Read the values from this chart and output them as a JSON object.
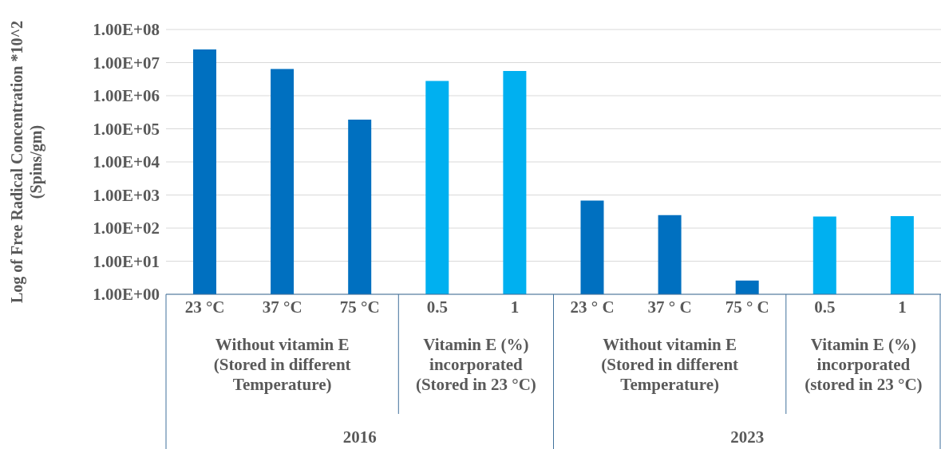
{
  "chart_data": {
    "type": "bar",
    "ylabel": "Log of Free Radical Concentration *10^2\n(Spins/gm)",
    "categories": [
      "23 °C",
      "37 °C",
      "75  °C",
      "0.5",
      "1",
      "23 ° C",
      "37  ° C",
      "75  ° C",
      "0.5",
      "1"
    ],
    "values": [
      25000000,
      6400000,
      190000,
      2800000,
      5600000,
      680,
      245,
      2.6,
      224,
      230
    ],
    "colors": [
      "#0070c0",
      "#0070c0",
      "#0070c0",
      "#00b0f0",
      "#00b0f0",
      "#0070c0",
      "#0070c0",
      "#0070c0",
      "#00b0f0",
      "#00b0f0"
    ],
    "log": true,
    "ylim": [
      1,
      100000000
    ],
    "yticks": [
      {
        "value": 1,
        "label": "1.00E+00"
      },
      {
        "value": 10,
        "label": "1.00E+01"
      },
      {
        "value": 100,
        "label": "1.00E+02"
      },
      {
        "value": 1000,
        "label": "1.00E+03"
      },
      {
        "value": 10000,
        "label": "1.00E+04"
      },
      {
        "value": 100000,
        "label": "1.00E+05"
      },
      {
        "value": 1000000,
        "label": "1.00E+06"
      },
      {
        "value": 10000000,
        "label": "1.00E+07"
      },
      {
        "value": 100000000,
        "label": "1.00E+08"
      }
    ],
    "grid": "y",
    "annotations": [
      "Without vitamin E\n(Stored in different\nTemperature)",
      "Vitamin E (%)\nincorporated\n(Stored in 23 °C)",
      "Without vitamin E\n(Stored in different\nTemperature)",
      "Vitamin E (%)\nincorporated\n(stored in 23 °C)",
      "2016",
      "2023"
    ]
  }
}
